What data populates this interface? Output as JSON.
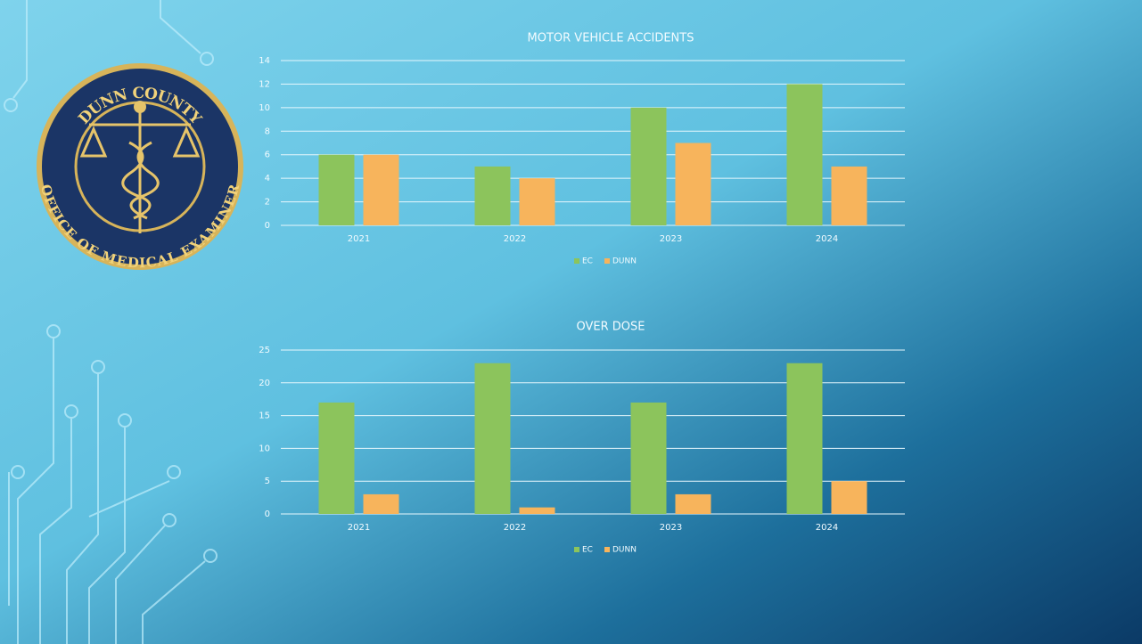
{
  "logo": {
    "top_text": "DUNN COUNTY",
    "bottom_text": "OFFICE OF MEDICAL EXAMINER"
  },
  "chart_data": [
    {
      "type": "bar",
      "title": "MOTOR VEHICLE ACCIDENTS",
      "categories": [
        "2021",
        "2022",
        "2023",
        "2024"
      ],
      "series": [
        {
          "name": "EC",
          "color": "#8cc45c",
          "values": [
            6,
            5,
            10,
            12
          ]
        },
        {
          "name": "DUNN",
          "color": "#f7b45c",
          "values": [
            6,
            4,
            7,
            5
          ]
        }
      ],
      "ylim": [
        0,
        14
      ],
      "yticks": [
        0,
        2,
        4,
        6,
        8,
        10,
        12,
        14
      ],
      "grid": true,
      "legend": "bottom"
    },
    {
      "type": "bar",
      "title": "OVER DOSE",
      "categories": [
        "2021",
        "2022",
        "2023",
        "2024"
      ],
      "series": [
        {
          "name": "EC",
          "color": "#8cc45c",
          "values": [
            17,
            23,
            17,
            23
          ]
        },
        {
          "name": "DUNN",
          "color": "#f7b45c",
          "values": [
            3,
            1,
            3,
            5
          ]
        }
      ],
      "ylim": [
        0,
        25
      ],
      "yticks": [
        0,
        5,
        10,
        15,
        20,
        25
      ],
      "grid": true,
      "legend": "bottom"
    }
  ]
}
